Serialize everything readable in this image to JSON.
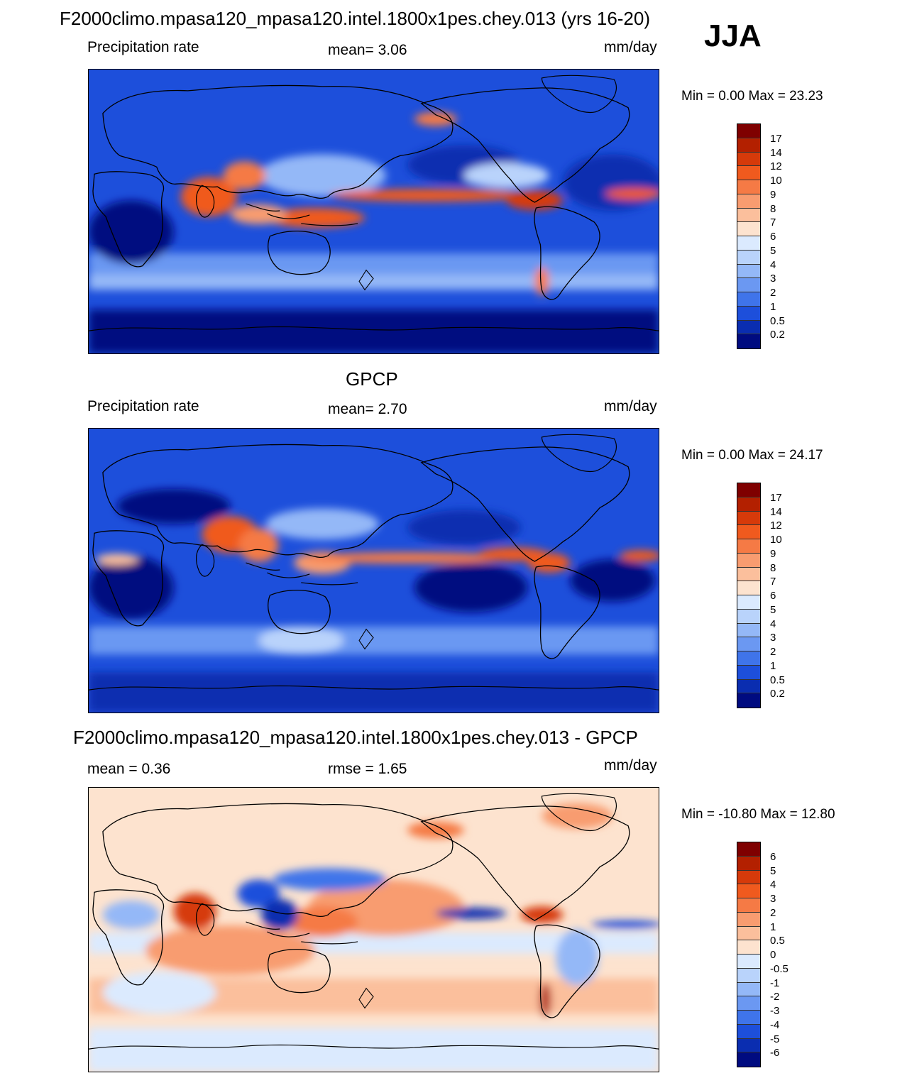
{
  "header": {
    "case_title": "F2000climo.mpasa120_mpasa120.intel.1800x1pes.chey.013 (yrs 16-20)",
    "season": "JJA"
  },
  "panels": [
    {
      "left_label": "Precipitation rate",
      "center_label": "mean=   3.06",
      "units": "mm/day",
      "minmax": "Min =    0.00 Max =  23.23"
    },
    {
      "title": "GPCP",
      "left_label": "Precipitation rate",
      "center_label": "mean=   2.70",
      "units": "mm/day",
      "minmax": "Min =    0.00 Max =  24.17"
    },
    {
      "title": "F2000climo.mpasa120_mpasa120.intel.1800x1pes.chey.013 - GPCP",
      "left_label": "mean =   0.36",
      "center_label": "rmse =    1.65",
      "units": "mm/day",
      "minmax": "Min = -10.80 Max =  12.80"
    }
  ],
  "colorbars": {
    "precip": {
      "labels": [
        "17",
        "14",
        "12",
        "10",
        "9",
        "8",
        "7",
        "6",
        "5",
        "4",
        "3",
        "2",
        "1",
        "0.5",
        "0.2"
      ],
      "colors": [
        "#7f0000",
        "#b32000",
        "#d63a0a",
        "#f05a1e",
        "#f57a45",
        "#f89c70",
        "#fbbf9c",
        "#fde3cf",
        "#dbeafe",
        "#b9d3fb",
        "#94b8f7",
        "#6b98f2",
        "#3f74ea",
        "#1d4fdb",
        "#0a2db0",
        "#000b80"
      ]
    },
    "diff": {
      "labels": [
        "6",
        "5",
        "4",
        "3",
        "2",
        "1",
        "0.5",
        "0",
        "-0.5",
        "-1",
        "-2",
        "-3",
        "-4",
        "-5",
        "-6"
      ],
      "colors": [
        "#7f0000",
        "#b32000",
        "#d63a0a",
        "#f05a1e",
        "#f57a45",
        "#f89c70",
        "#fbbf9c",
        "#fde3cf",
        "#dbeafe",
        "#b9d3fb",
        "#94b8f7",
        "#6b98f2",
        "#3f74ea",
        "#1d4fdb",
        "#0a2db0",
        "#000b80"
      ]
    }
  }
}
